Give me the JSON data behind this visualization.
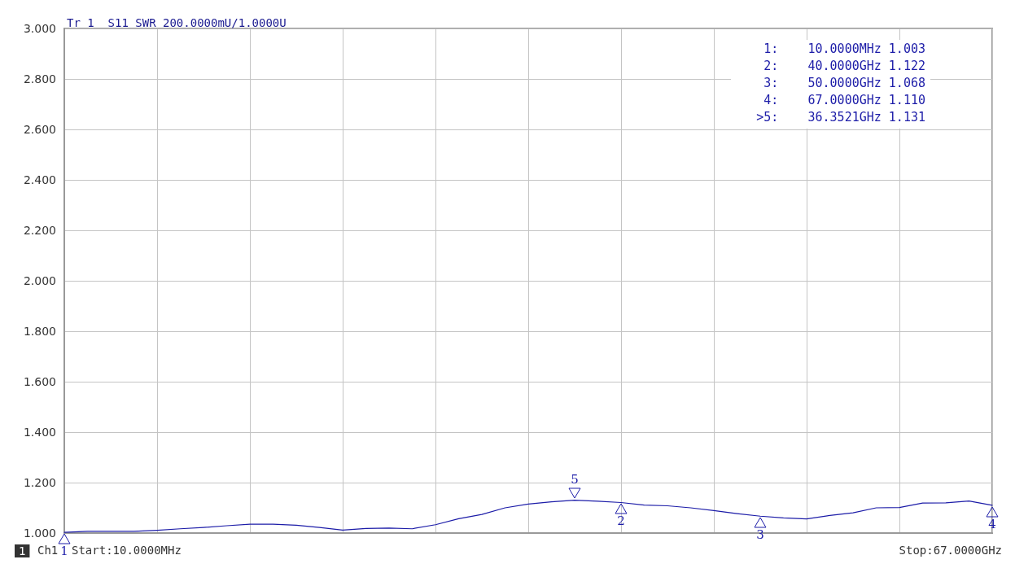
{
  "chart_data": {
    "type": "line",
    "title": "Tr 1  S11 SWR 200.0000mU/1.0000U",
    "categories": [
      null,
      null,
      null,
      null,
      null,
      null,
      null,
      null,
      null,
      null,
      null,
      null,
      null,
      null,
      null,
      null,
      null,
      null,
      null,
      null,
      null,
      null,
      null,
      null,
      null,
      null,
      null,
      null,
      null,
      null,
      null,
      null,
      null,
      null,
      null,
      null,
      null,
      null,
      null,
      null,
      null
    ],
    "series": [
      {
        "color": "#1c1ca8",
        "values": [
          1.003,
          1.007,
          1.007,
          1.007,
          1.011,
          1.017,
          1.022,
          1.029,
          1.035,
          1.035,
          1.031,
          1.022,
          1.012,
          1.018,
          1.02,
          1.017,
          1.033,
          1.057,
          1.074,
          1.1,
          1.115,
          1.124,
          1.13,
          1.126,
          1.121,
          1.111,
          1.108,
          1.1,
          1.089,
          1.077,
          1.067,
          1.06,
          1.056,
          1.07,
          1.08,
          1.1,
          1.101,
          1.119,
          1.12,
          1.127,
          1.11
        ]
      }
    ],
    "ylim": [
      1,
      3
    ],
    "yticks": [
      {
        "value": 1,
        "label": "1.000"
      },
      {
        "value": 1.2,
        "label": "1.200"
      },
      {
        "value": 1.4,
        "label": "1.400"
      },
      {
        "value": 1.6,
        "label": "1.600"
      },
      {
        "value": 1.8,
        "label": "1.800"
      },
      {
        "value": 2,
        "label": "2.000"
      },
      {
        "value": 2.2,
        "label": "2.200"
      },
      {
        "value": 2.4,
        "label": "2.400"
      },
      {
        "value": 2.6,
        "label": "2.600"
      },
      {
        "value": 2.8,
        "label": "2.800"
      },
      {
        "value": 3,
        "label": "3.000"
      }
    ],
    "tick_labels": "y",
    "grid": true,
    "marker": "none",
    "line_style": "solid",
    "annotations": [
      "1:    10.0000MHz 1.003",
      "2:    40.0000GHz 1.122",
      "3:    50.0000GHz 1.068",
      "4:    67.0000GHz 1.110",
      ">5:    36.3521GHz 1.131",
      "1",
      "Ch1",
      "Start:10.0000MHz",
      "Stop:67.0000GHz",
      "1",
      "2",
      "3",
      "4",
      "5"
    ]
  }
}
